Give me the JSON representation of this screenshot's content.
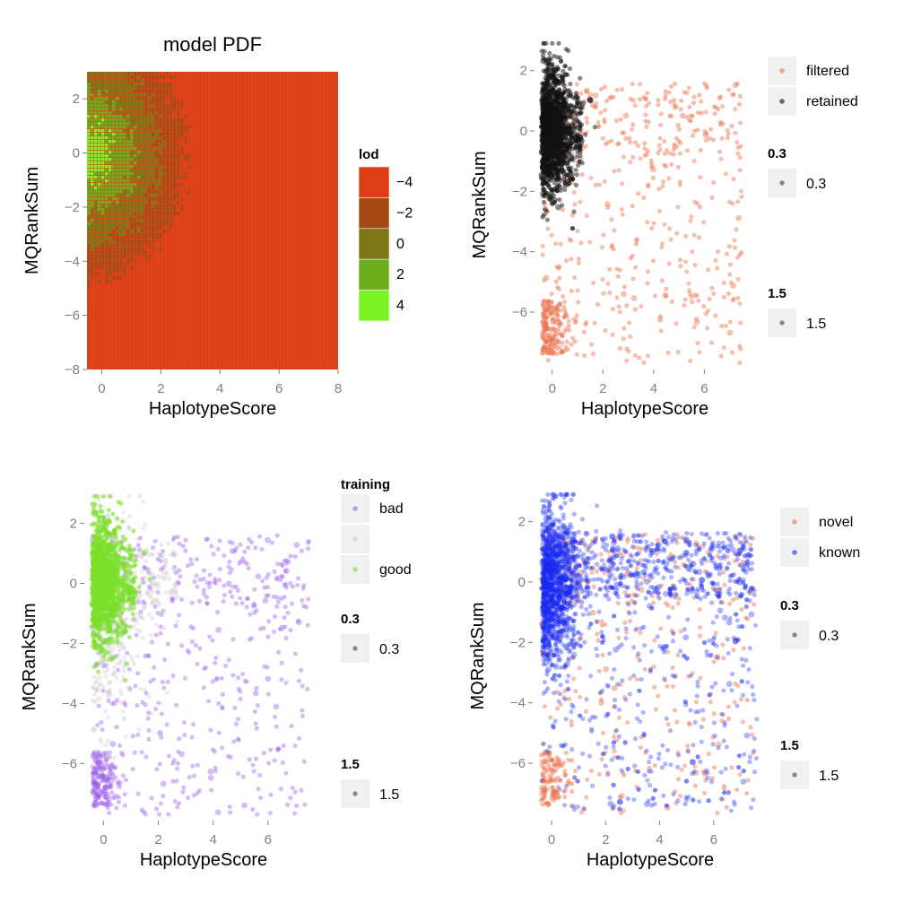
{
  "colors": {
    "filtered": "#e8734f",
    "retained": "#111111",
    "bad": "#9b59e8",
    "neutral": "#cccccc",
    "good": "#7be02a",
    "novel": "#e8734f",
    "known": "#1a2af0",
    "legend_key_bg": "#f0f0f0",
    "lod_scale": [
      "#7cf322",
      "#6aae1c",
      "#7d7614",
      "#a54a14",
      "#dd3e14"
    ]
  },
  "chart_data": [
    {
      "type": "heatmap",
      "title": "model PDF",
      "xlabel": "HaplotypeScore",
      "ylabel": "MQRankSum",
      "xlim": [
        -0.5,
        8
      ],
      "ylim": [
        -8,
        3
      ],
      "x_ticks": [
        "0",
        "2",
        "4",
        "6",
        "8"
      ],
      "y_ticks": [
        "2",
        "0",
        "−2",
        "−4",
        "−6",
        "−8"
      ],
      "grid": false,
      "legend": {
        "title": "lod",
        "position": "right",
        "labels": [
          "−4",
          "−2",
          "0",
          "2",
          "4"
        ]
      }
    },
    {
      "type": "scatter",
      "xlabel": "HaplotypeScore",
      "ylabel": "MQRankSum",
      "xlim": [
        -0.7,
        8
      ],
      "ylim": [
        -7.9,
        3
      ],
      "x_ticks": [
        "0",
        "2",
        "4",
        "6"
      ],
      "y_ticks": [
        "2",
        "0",
        "−2",
        "−4",
        "−6"
      ],
      "grid": false,
      "series": [
        {
          "name": "filtered",
          "region": "spread",
          "count": 650
        },
        {
          "name": "retained",
          "region": "core",
          "count": 1600
        }
      ],
      "legend": {
        "position": "right",
        "entries": [
          "filtered",
          "retained"
        ],
        "size_legends": [
          {
            "title": "0.3",
            "label": "0.3"
          },
          {
            "title": "1.5",
            "label": "1.5"
          }
        ]
      }
    },
    {
      "type": "scatter",
      "xlabel": "HaplotypeScore",
      "ylabel": "MQRankSum",
      "xlim": [
        -0.7,
        8
      ],
      "ylim": [
        -7.9,
        3
      ],
      "x_ticks": [
        "0",
        "2",
        "4",
        "6"
      ],
      "y_ticks": [
        "2",
        "0",
        "−2",
        "−4",
        "−6"
      ],
      "grid": false,
      "series": [
        {
          "name": "bad",
          "region": "spread",
          "count": 650
        },
        {
          "name": "",
          "region": "mid",
          "count": 500
        },
        {
          "name": "good",
          "region": "core",
          "count": 1100
        }
      ],
      "legend": {
        "title": "training",
        "position": "right",
        "entries": [
          "bad",
          "",
          "good"
        ],
        "size_legends": [
          {
            "title": "0.3",
            "label": "0.3"
          },
          {
            "title": "1.5",
            "label": "1.5"
          }
        ]
      }
    },
    {
      "type": "scatter",
      "xlabel": "HaplotypeScore",
      "ylabel": "MQRankSum",
      "xlim": [
        -0.7,
        8
      ],
      "ylim": [
        -7.9,
        3
      ],
      "x_ticks": [
        "0",
        "2",
        "4",
        "6"
      ],
      "y_ticks": [
        "2",
        "0",
        "−2",
        "−4",
        "−6"
      ],
      "grid": false,
      "series": [
        {
          "name": "novel",
          "region": "spread",
          "count": 450
        },
        {
          "name": "known",
          "region": "mixed",
          "count": 2200
        }
      ],
      "legend": {
        "position": "right",
        "entries": [
          "novel",
          "known"
        ],
        "size_legends": [
          {
            "title": "0.3",
            "label": "0.3"
          },
          {
            "title": "1.5",
            "label": "1.5"
          }
        ]
      }
    }
  ]
}
